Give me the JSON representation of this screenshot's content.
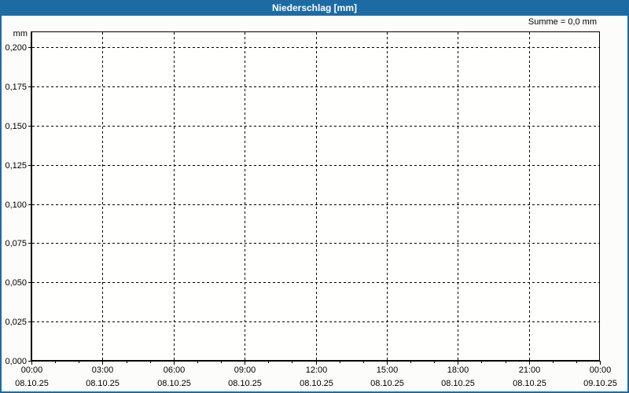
{
  "window": {
    "title": "Niederschlag [mm]"
  },
  "colors": {
    "accent_blue": "#1d6ba4",
    "background": "#fcfdfa",
    "plot_background": "#fffffe",
    "grid": "#000000",
    "axis": "#000000",
    "text": "#000000",
    "title_text": "#ffffff"
  },
  "chart_data": {
    "type": "line",
    "title": "Niederschlag [mm]",
    "ylabel": "mm",
    "xlabel": "",
    "ylim": [
      0,
      0.2
    ],
    "y_tick_interval": 0.025,
    "y_tick_labels": [
      "0,000",
      "0,025",
      "0,050",
      "0,075",
      "0,100",
      "0,125",
      "0,150",
      "0,175",
      "0,200"
    ],
    "x_ticks": [
      {
        "time": "00:00",
        "date": "08.10.25"
      },
      {
        "time": "03:00",
        "date": "08.10.25"
      },
      {
        "time": "06:00",
        "date": "08.10.25"
      },
      {
        "time": "09:00",
        "date": "08.10.25"
      },
      {
        "time": "12:00",
        "date": "08.10.25"
      },
      {
        "time": "15:00",
        "date": "08.10.25"
      },
      {
        "time": "18:00",
        "date": "08.10.25"
      },
      {
        "time": "21:00",
        "date": "08.10.25"
      },
      {
        "time": "00:00",
        "date": "09.10.25"
      }
    ],
    "x_minor_ticks_per_interval": 2,
    "grid": true,
    "grid_style": "dashed",
    "series": [
      {
        "name": "Niederschlag",
        "values": []
      }
    ],
    "annotations": [
      {
        "text": "Summe = 0,0 mm",
        "position": "top-right"
      }
    ]
  }
}
